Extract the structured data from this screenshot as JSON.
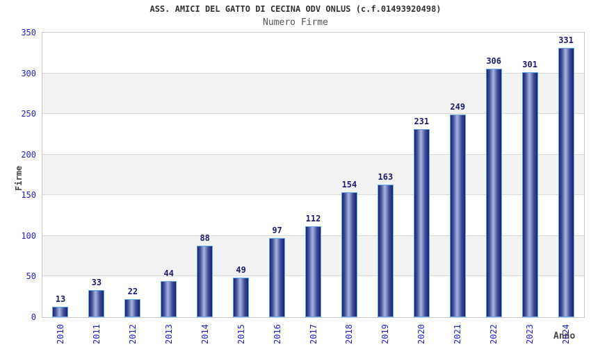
{
  "chart_data": {
    "type": "bar",
    "title": "ASS. AMICI DEL GATTO DI CECINA ODV ONLUS (c.f.01493920498)",
    "subtitle": "Numero Firme",
    "categories": [
      "2010",
      "2011",
      "2012",
      "2013",
      "2014",
      "2015",
      "2016",
      "2017",
      "2018",
      "2019",
      "2020",
      "2021",
      "2022",
      "2023",
      "2024"
    ],
    "values": [
      13,
      33,
      22,
      44,
      88,
      49,
      97,
      112,
      154,
      163,
      231,
      249,
      306,
      301,
      331
    ],
    "xlabel": "Anno",
    "ylabel": "Firme",
    "ylim": [
      0,
      350
    ],
    "yticks": [
      0,
      50,
      100,
      150,
      200,
      250,
      300,
      350
    ],
    "grid": "horizontal gridlines every 50 with alternating gray bands",
    "legend": "none",
    "colors": {
      "bar_border": "#64a8f0",
      "bar_edge": "#1a2470",
      "bar_mid": "#3e4c98",
      "bar_highlight": "#aab4e0",
      "value_label": "#1b1b70",
      "tick_label": "#2222cc",
      "axis_title": "#444444",
      "title": "#333333",
      "subtitle": "#555555",
      "band": "#f2f2f2",
      "gridline": "#d9d9d9",
      "plot_border": "#c8c8c8",
      "background": "#ffffff"
    }
  }
}
